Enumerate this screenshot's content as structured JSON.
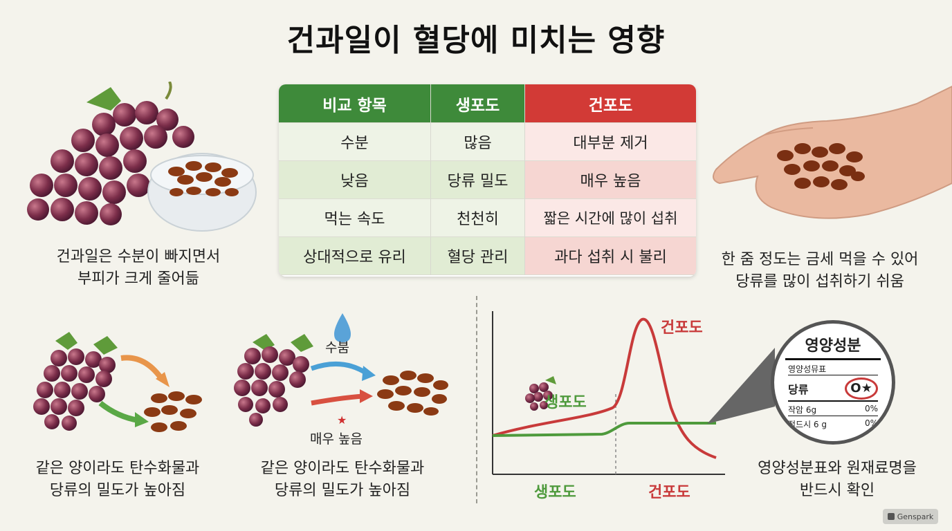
{
  "title": "건과일이 혈당에 미치는 영향",
  "table": {
    "headers": [
      "비교 항목",
      "생포도",
      "건포도"
    ],
    "rows": [
      [
        "수분",
        "많음",
        "대부분 제거"
      ],
      [
        "낮음",
        "당류 밀도",
        "매우 높음"
      ],
      [
        "먹는 속도",
        "천천히",
        "짧은 시간에 많이 섭취"
      ],
      [
        "상대적으로 유리",
        "혈당 관리",
        "과다 섭취 시 불리"
      ]
    ]
  },
  "captions": {
    "top_left": [
      "건과일은 수분이 빠지면서",
      "부피가 크게 줄어듦"
    ],
    "top_right": [
      "한 줌 정도는 금세 먹을 수 있어",
      "당류를 많이 섭취하기 쉬움"
    ],
    "bottom_left": [
      "같은 양이라도 탄수화물과",
      "당류의 밀도가 높아짐"
    ],
    "bottom_middle": [
      "같은 양이라도 탄수화물과",
      "당류의 밀도가 높아짐"
    ],
    "bottom_right": [
      "영양성분표와 원재료명을",
      "반드시 확인"
    ]
  },
  "process": {
    "water_label": "수붐",
    "sugar_label": "매우 높음"
  },
  "chart_data": {
    "type": "line",
    "series": [
      {
        "name": "생포도",
        "color": "#4e9a3c"
      },
      {
        "name": "건포도",
        "color": "#c83a3a"
      }
    ],
    "xlabels": [
      "생포도",
      "건포도"
    ]
  },
  "nutrition_label": {
    "title": "영양성분",
    "subtitle": "영양성뮤표",
    "sugar_row": "당류",
    "rows": [
      {
        "label": "작암 6g",
        "value": "0%"
      },
      {
        "label": "적드시 6 g",
        "value": "0%"
      }
    ]
  },
  "brand": "Genspark",
  "colors": {
    "green": "#3e8a3a",
    "red": "#d23a36"
  }
}
